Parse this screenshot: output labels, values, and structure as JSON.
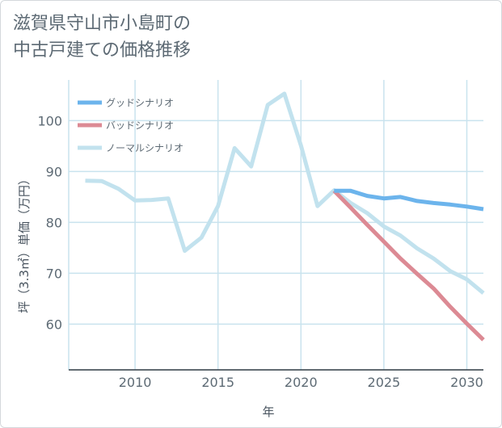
{
  "chart_data": {
    "type": "line",
    "title_lines": [
      "滋賀県守山市小島町の",
      "中古戸建ての価格推移"
    ],
    "xlabel": "年",
    "ylabel": "坪（3.3㎡）単価（万円）",
    "xlim": [
      2006,
      2031
    ],
    "ylim": [
      51,
      108
    ],
    "x_ticks": [
      2010,
      2015,
      2020,
      2025,
      2030
    ],
    "y_ticks": [
      60,
      70,
      80,
      90,
      100
    ],
    "legend_position": "top-left",
    "series": [
      {
        "name": "グッドシナリオ",
        "color": "#6cb4ec",
        "x": [
          2022,
          2023,
          2024,
          2025,
          2026,
          2027,
          2028,
          2029,
          2030,
          2031
        ],
        "y": [
          86.2,
          86.2,
          85.2,
          84.7,
          85.0,
          84.2,
          83.8,
          83.5,
          83.1,
          82.6
        ]
      },
      {
        "name": "バッドシナリオ",
        "color": "#dc8a94",
        "x": [
          2022,
          2023,
          2024,
          2025,
          2026,
          2027,
          2028,
          2029,
          2030,
          2031
        ],
        "y": [
          86.2,
          82.9,
          79.5,
          76.2,
          72.9,
          69.9,
          67.0,
          63.4,
          60.1,
          56.9
        ]
      },
      {
        "name": "ノーマルシナリオ",
        "color": "#c2e2ee",
        "x": [
          2007,
          2008,
          2009,
          2010,
          2011,
          2012,
          2013,
          2014,
          2015,
          2016,
          2017,
          2018,
          2019,
          2020,
          2021,
          2022,
          2023,
          2024,
          2025,
          2026,
          2027,
          2028,
          2029,
          2030,
          2031
        ],
        "y": [
          88.2,
          88.1,
          86.6,
          84.3,
          84.4,
          84.7,
          74.4,
          77.0,
          83.2,
          94.6,
          91.0,
          103.1,
          105.3,
          95.1,
          83.2,
          86.3,
          83.8,
          81.8,
          79.2,
          77.4,
          74.9,
          72.9,
          70.4,
          68.8,
          66.1
        ]
      }
    ]
  }
}
